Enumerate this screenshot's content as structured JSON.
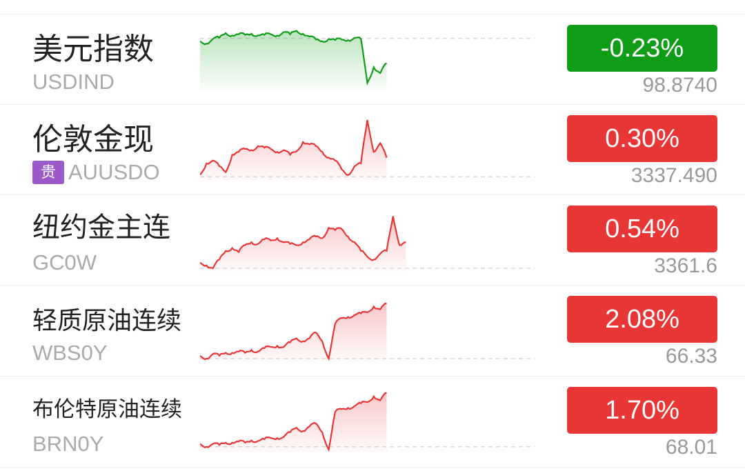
{
  "colors": {
    "up": "#e83535",
    "down": "#0f9d18",
    "tag": "#9b59c9"
  },
  "rows": [
    {
      "name": "美元指数",
      "code": "USDIND",
      "tag": "",
      "change": "-0.23%",
      "price": "98.8740",
      "direction": "down",
      "prev_close": 0.85,
      "spark": [
        0.8,
        0.76,
        0.84,
        0.86,
        0.94,
        0.9,
        0.92,
        0.91,
        0.93,
        0.9,
        0.91,
        0.92,
        0.9,
        0.96,
        0.92,
        0.98,
        0.93,
        0.88,
        0.83,
        0.8,
        0.84,
        0.82,
        0.83,
        0.82,
        0.86,
        0.84,
        0.08,
        0.35,
        0.25,
        0.42
      ]
    },
    {
      "name": "伦敦金现",
      "code": "AUUSDO",
      "tag": "贵",
      "change": "0.30%",
      "price": "3337.490",
      "direction": "up",
      "prev_close": 0.02,
      "spark": [
        0.05,
        0.25,
        0.3,
        0.2,
        0.1,
        0.4,
        0.45,
        0.5,
        0.48,
        0.55,
        0.52,
        0.5,
        0.45,
        0.48,
        0.4,
        0.46,
        0.62,
        0.58,
        0.55,
        0.45,
        0.35,
        0.3,
        0.15,
        0.05,
        0.2,
        0.25,
        1.0,
        0.45,
        0.6,
        0.35
      ]
    },
    {
      "name": "纽约金主连",
      "code": "GC0W",
      "tag": "",
      "change": "0.54%",
      "price": "3361.6",
      "direction": "up",
      "prev_close": 0.0,
      "spark": [
        0.1,
        0.05,
        0.0,
        0.15,
        0.3,
        0.35,
        0.28,
        0.4,
        0.45,
        0.42,
        0.5,
        0.48,
        0.52,
        0.45,
        0.42,
        0.4,
        0.45,
        0.5,
        0.55,
        0.52,
        0.7,
        0.66,
        0.68,
        0.55,
        0.45,
        0.3,
        0.2,
        0.15,
        0.25,
        0.3,
        0.9,
        0.4,
        0.45
      ]
    },
    {
      "name": "轻质原油连续",
      "code": "WBS0Y",
      "tag": "",
      "change": "2.08%",
      "price": "66.33",
      "direction": "up",
      "prev_close": 0.0,
      "spark": [
        0.05,
        0.0,
        0.08,
        0.05,
        0.1,
        0.1,
        0.12,
        0.1,
        0.15,
        0.12,
        0.18,
        0.2,
        0.22,
        0.2,
        0.28,
        0.35,
        0.3,
        0.35,
        0.45,
        0.3,
        0.0,
        0.6,
        0.7,
        0.72,
        0.75,
        0.78,
        0.8,
        0.9,
        0.85,
        0.95
      ]
    },
    {
      "name": "布伦特原油连续",
      "code": "BRN0Y",
      "tag": "",
      "change": "1.70%",
      "price": "68.01",
      "direction": "up",
      "prev_close": 0.05,
      "spark": [
        0.1,
        0.05,
        0.1,
        0.08,
        0.12,
        0.12,
        0.14,
        0.12,
        0.16,
        0.15,
        0.18,
        0.2,
        0.2,
        0.22,
        0.3,
        0.38,
        0.32,
        0.4,
        0.45,
        0.3,
        0.0,
        0.65,
        0.7,
        0.72,
        0.75,
        0.8,
        0.82,
        0.92,
        0.85,
        0.98
      ]
    }
  ]
}
